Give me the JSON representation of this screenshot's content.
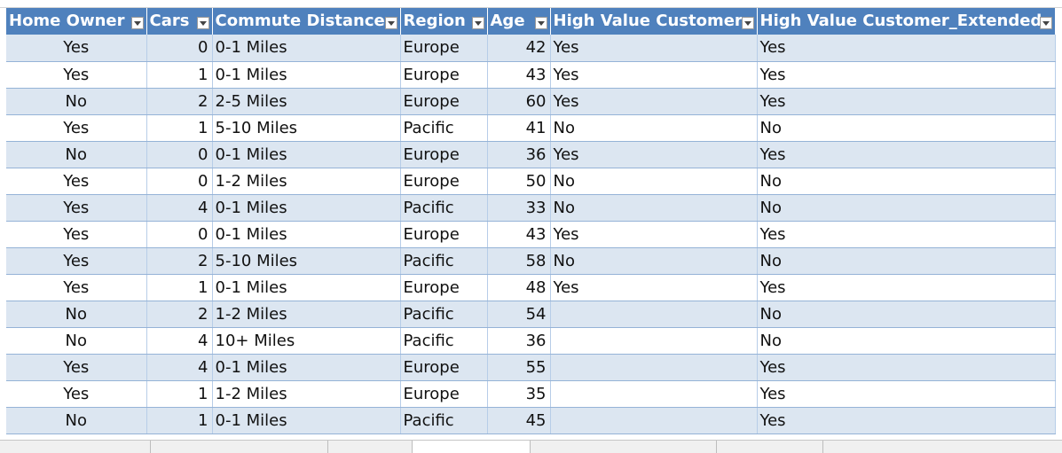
{
  "table": {
    "columns": [
      {
        "label": "Home Owner",
        "align": "center"
      },
      {
        "label": "Cars",
        "align": "right"
      },
      {
        "label": "Commute Distance",
        "align": "left"
      },
      {
        "label": "Region",
        "align": "left"
      },
      {
        "label": "Age",
        "align": "right"
      },
      {
        "label": "High Value Customer",
        "align": "left"
      },
      {
        "label": "High Value Customer_Extended",
        "align": "left"
      }
    ],
    "rows": [
      [
        "Yes",
        "0",
        "0-1 Miles",
        "Europe",
        "42",
        "Yes",
        "Yes"
      ],
      [
        "Yes",
        "1",
        "0-1 Miles",
        "Europe",
        "43",
        "Yes",
        "Yes"
      ],
      [
        "No",
        "2",
        "2-5 Miles",
        "Europe",
        "60",
        "Yes",
        "Yes"
      ],
      [
        "Yes",
        "1",
        "5-10 Miles",
        "Pacific",
        "41",
        "No",
        "No"
      ],
      [
        "No",
        "0",
        "0-1 Miles",
        "Europe",
        "36",
        "Yes",
        "Yes"
      ],
      [
        "Yes",
        "0",
        "1-2 Miles",
        "Europe",
        "50",
        "No",
        "No"
      ],
      [
        "Yes",
        "4",
        "0-1 Miles",
        "Pacific",
        "33",
        "No",
        "No"
      ],
      [
        "Yes",
        "0",
        "0-1 Miles",
        "Europe",
        "43",
        "Yes",
        "Yes"
      ],
      [
        "Yes",
        "2",
        "5-10 Miles",
        "Pacific",
        "58",
        "No",
        "No"
      ],
      [
        "Yes",
        "1",
        "0-1 Miles",
        "Europe",
        "48",
        "Yes",
        "Yes"
      ],
      [
        "No",
        "2",
        "1-2 Miles",
        "Pacific",
        "54",
        "",
        "No"
      ],
      [
        "No",
        "4",
        "10+ Miles",
        "Pacific",
        "36",
        "",
        "No"
      ],
      [
        "Yes",
        "4",
        "0-1 Miles",
        "Europe",
        "55",
        "",
        "Yes"
      ],
      [
        "Yes",
        "1",
        "1-2 Miles",
        "Europe",
        "35",
        "",
        "Yes"
      ],
      [
        "No",
        "1",
        "0-1 Miles",
        "Pacific",
        "45",
        "",
        "Yes"
      ]
    ]
  },
  "colors": {
    "header_bg": "#4f81bd",
    "band": "#dce6f1",
    "border": "#95b3d7"
  },
  "icons": {
    "filter": "filter-dropdown-icon"
  }
}
